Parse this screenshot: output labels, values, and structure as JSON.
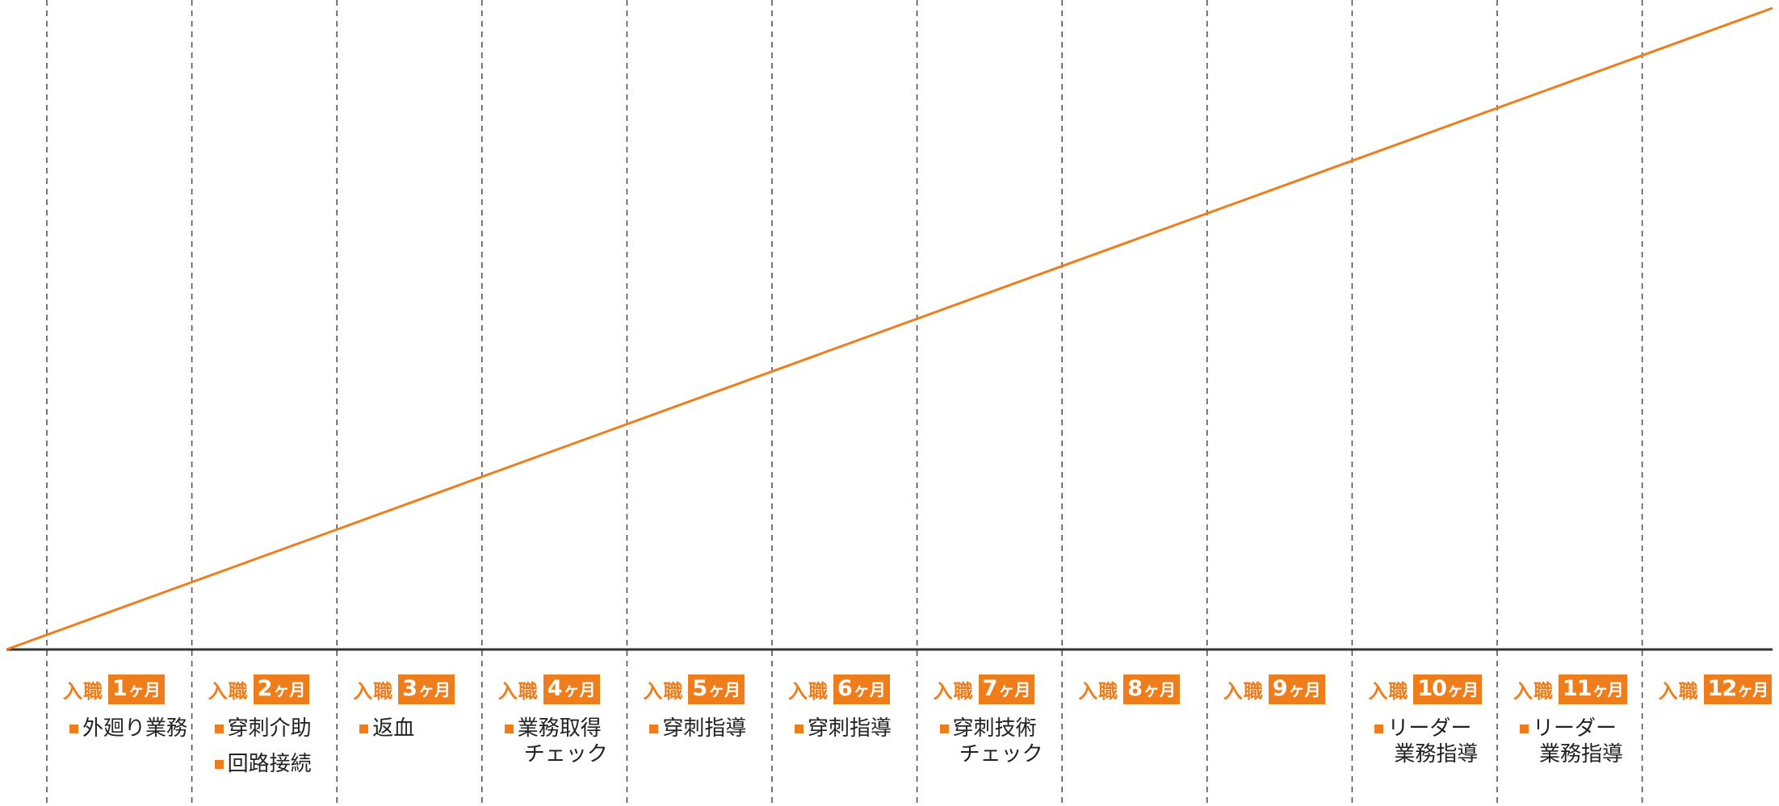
{
  "colors": {
    "accent": "#ef7d1b",
    "baseline": "#333333",
    "divider": "#555555"
  },
  "diagram": {
    "hire_label": "入職",
    "unit_label": "ヶ月",
    "months": [
      {
        "number": "1",
        "tasks": [
          [
            "外廻り業務"
          ]
        ]
      },
      {
        "number": "2",
        "tasks": [
          [
            "穿刺介助"
          ],
          [
            "回路接続"
          ]
        ]
      },
      {
        "number": "3",
        "tasks": [
          [
            "返血"
          ]
        ]
      },
      {
        "number": "4",
        "tasks": [
          [
            "業務取得",
            "チェック"
          ]
        ]
      },
      {
        "number": "5",
        "tasks": [
          [
            "穿刺指導"
          ]
        ]
      },
      {
        "number": "6",
        "tasks": [
          [
            "穿刺指導"
          ]
        ]
      },
      {
        "number": "7",
        "tasks": [
          [
            "穿刺技術",
            "チェック"
          ]
        ]
      },
      {
        "number": "8",
        "tasks": []
      },
      {
        "number": "9",
        "tasks": []
      },
      {
        "number": "10",
        "tasks": [
          [
            "リーダー",
            "業務指導"
          ]
        ]
      },
      {
        "number": "11",
        "tasks": [
          [
            "リーダー",
            "業務指導"
          ]
        ]
      },
      {
        "number": "12",
        "tasks": []
      }
    ]
  }
}
